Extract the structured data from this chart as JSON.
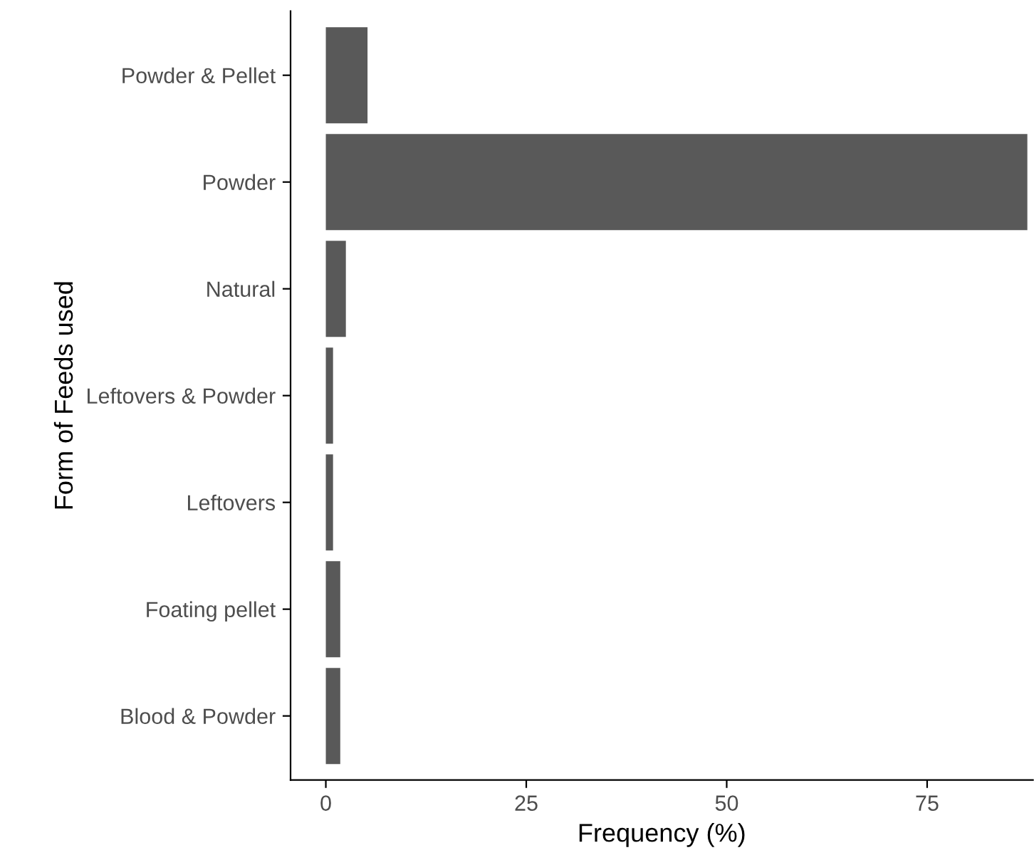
{
  "chart_data": {
    "type": "bar",
    "orientation": "horizontal",
    "xlabel": "Frequency (%)",
    "ylabel": "Form of Feeds used",
    "categories": [
      "Powder & Pellet",
      "Powder",
      "Natural",
      "Leftovers & Powder",
      "Leftovers",
      "Foating pellet",
      "Blood & Powder"
    ],
    "values": [
      5.2,
      87.5,
      2.5,
      0.9,
      0.9,
      1.8,
      1.8
    ],
    "color": "#595959",
    "xlim": [
      -4.4,
      88.2
    ],
    "xticks": [
      0,
      25,
      50,
      75
    ],
    "grid": false,
    "legend": false
  }
}
